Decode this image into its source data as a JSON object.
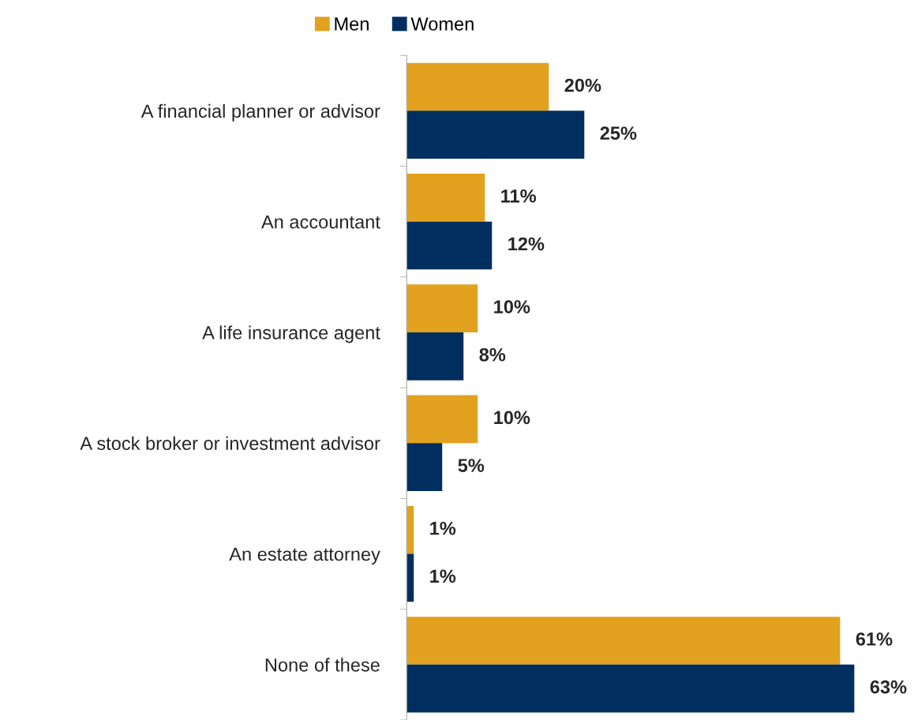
{
  "chart_data": {
    "type": "bar",
    "orientation": "horizontal",
    "categories": [
      "A financial planner or advisor",
      "An accountant",
      "A life insurance agent",
      "A stock broker or investment advisor",
      "An estate attorney",
      "None of these"
    ],
    "series": [
      {
        "name": "Men",
        "color": "#e2a11e",
        "values": [
          20,
          11,
          10,
          10,
          1,
          61
        ],
        "value_labels": [
          "20%",
          "11%",
          "10%",
          "10%",
          "1%",
          "61%"
        ]
      },
      {
        "name": "Women",
        "color": "#002f5f",
        "values": [
          25,
          12,
          8,
          5,
          1,
          63
        ],
        "value_labels": [
          "25%",
          "12%",
          "8%",
          "5%",
          "1%",
          "63%"
        ]
      }
    ],
    "tick_labels": "y",
    "grid": false,
    "legend": "top"
  }
}
